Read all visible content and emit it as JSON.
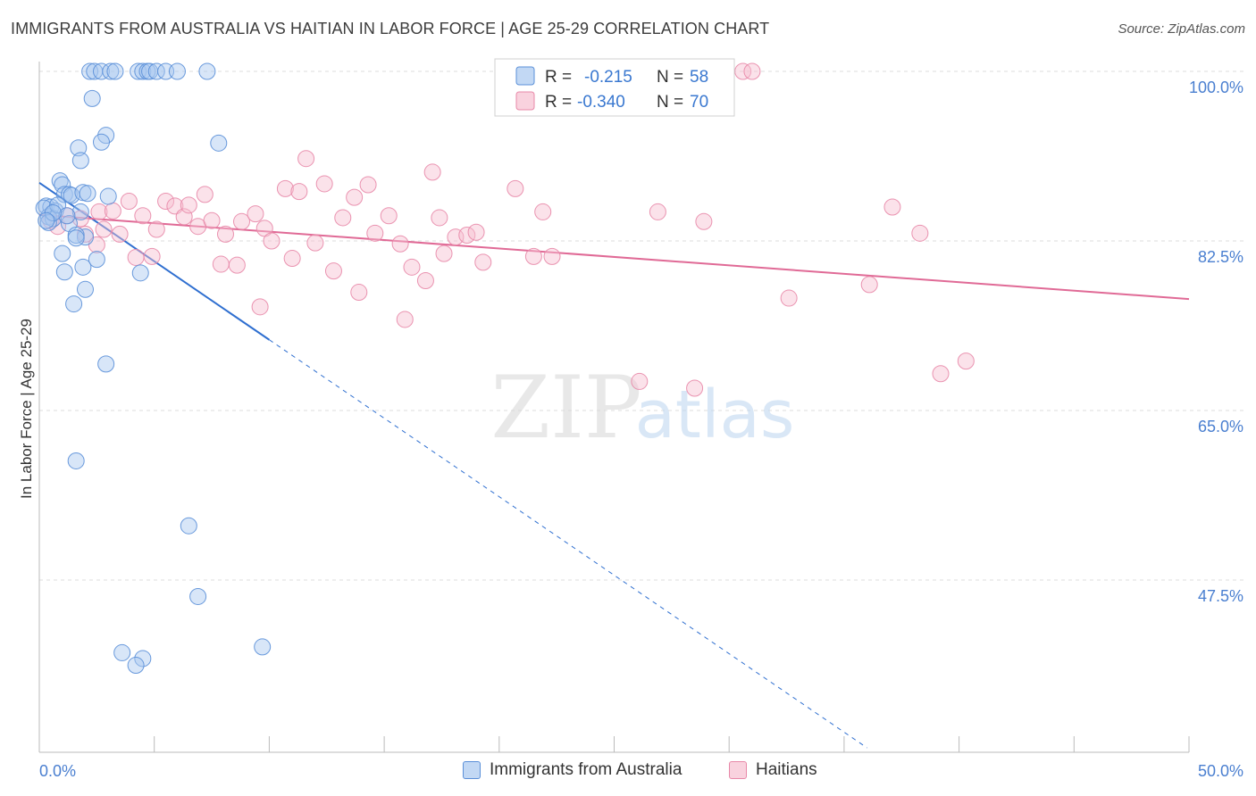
{
  "title": "IMMIGRANTS FROM AUSTRALIA VS HAITIAN IN LABOR FORCE | AGE 25-29 CORRELATION CHART",
  "source": "Source: ZipAtlas.com",
  "watermark": {
    "zip": "ZIP",
    "atlas": "atlas"
  },
  "colors": {
    "blue_fill": "#a8c8f0",
    "blue_stroke": "#5a8fd8",
    "blue_line": "#2f6fd0",
    "pink_fill": "#f6bfd0",
    "pink_stroke": "#e888a8",
    "pink_line": "#e06a96",
    "axis_label": "#4a7fd0",
    "grid": "#dddddd"
  },
  "legend_top": [
    {
      "r_label": "R =",
      "r_value": "-0.215",
      "n_label": "N =",
      "n_value": "58"
    },
    {
      "r_label": "R =",
      "r_value": "-0.340",
      "n_label": "N =",
      "n_value": "70"
    }
  ],
  "chart_data": {
    "type": "scatter",
    "ylabel": "In Labor Force | Age 25-29",
    "xlabel": "",
    "xlim": [
      0,
      50
    ],
    "ylim": [
      30,
      102
    ],
    "x_tick_labels": [
      "0.0%",
      "50.0%"
    ],
    "y_ticks": [
      {
        "value": 100,
        "label": "100.0%"
      },
      {
        "value": 82.5,
        "label": "82.5%"
      },
      {
        "value": 65,
        "label": "65.0%"
      },
      {
        "value": 47.5,
        "label": "47.5%"
      }
    ],
    "grid": "horizontal dashed",
    "legend_position": "bottom",
    "series": [
      {
        "name": "Immigrants from Australia",
        "r": -0.215,
        "n": 58,
        "trend": {
          "x0": 0,
          "y0": 88.5,
          "x1": 10,
          "y1": 72.3,
          "dash_to_x": 36
        },
        "points": [
          [
            2.2,
            100
          ],
          [
            2.4,
            100
          ],
          [
            2.7,
            100
          ],
          [
            3.1,
            100
          ],
          [
            3.3,
            100
          ],
          [
            4.3,
            100
          ],
          [
            4.5,
            100
          ],
          [
            4.7,
            100
          ],
          [
            4.8,
            100
          ],
          [
            5.1,
            100
          ],
          [
            5.5,
            100
          ],
          [
            6.0,
            100
          ],
          [
            7.3,
            100
          ],
          [
            2.3,
            97.2
          ],
          [
            2.9,
            93.4
          ],
          [
            2.7,
            92.7
          ],
          [
            1.7,
            92.1
          ],
          [
            7.8,
            92.6
          ],
          [
            1.8,
            90.8
          ],
          [
            0.9,
            88.7
          ],
          [
            1.0,
            88.3
          ],
          [
            1.1,
            87.3
          ],
          [
            1.3,
            87.3
          ],
          [
            1.4,
            87.2
          ],
          [
            0.3,
            86.1
          ],
          [
            0.5,
            86.0
          ],
          [
            0.7,
            85.6
          ],
          [
            0.4,
            85.0
          ],
          [
            0.6,
            84.8
          ],
          [
            1.3,
            84.3
          ],
          [
            1.8,
            85.5
          ],
          [
            2.0,
            82.9
          ],
          [
            3.0,
            87.1
          ],
          [
            1.9,
            87.5
          ],
          [
            1.6,
            83.1
          ],
          [
            1.0,
            81.2
          ],
          [
            1.1,
            79.3
          ],
          [
            2.5,
            80.6
          ],
          [
            1.9,
            79.8
          ],
          [
            2.0,
            77.5
          ],
          [
            4.4,
            79.2
          ],
          [
            1.5,
            76.0
          ],
          [
            2.9,
            69.8
          ],
          [
            1.6,
            59.8
          ],
          [
            6.5,
            53.1
          ],
          [
            6.9,
            45.8
          ],
          [
            9.7,
            40.6
          ],
          [
            3.6,
            40.0
          ],
          [
            4.5,
            39.4
          ],
          [
            4.2,
            38.7
          ],
          [
            0.2,
            85.9
          ],
          [
            0.8,
            86.2
          ],
          [
            0.4,
            84.4
          ],
          [
            1.2,
            85.1
          ],
          [
            0.6,
            85.4
          ],
          [
            0.3,
            84.6
          ],
          [
            1.6,
            82.8
          ],
          [
            2.1,
            87.4
          ]
        ]
      },
      {
        "name": "Haitians",
        "r": -0.34,
        "n": 70,
        "trend": {
          "x0": 0,
          "y0": 85.2,
          "x1": 50,
          "y1": 76.5
        },
        "points": [
          [
            0.5,
            84.6
          ],
          [
            0.8,
            84.0
          ],
          [
            1.2,
            85.1
          ],
          [
            1.8,
            84.8
          ],
          [
            2.0,
            83.2
          ],
          [
            2.5,
            82.1
          ],
          [
            2.6,
            85.5
          ],
          [
            2.8,
            83.7
          ],
          [
            3.2,
            85.6
          ],
          [
            3.5,
            83.2
          ],
          [
            3.9,
            86.6
          ],
          [
            4.2,
            80.8
          ],
          [
            4.5,
            85.1
          ],
          [
            4.9,
            80.9
          ],
          [
            5.1,
            83.7
          ],
          [
            5.5,
            86.6
          ],
          [
            5.9,
            86.1
          ],
          [
            6.3,
            85.0
          ],
          [
            6.5,
            86.2
          ],
          [
            6.9,
            84.0
          ],
          [
            7.2,
            87.3
          ],
          [
            7.5,
            84.6
          ],
          [
            7.9,
            80.1
          ],
          [
            8.1,
            83.2
          ],
          [
            8.6,
            80.0
          ],
          [
            8.8,
            84.5
          ],
          [
            9.4,
            85.3
          ],
          [
            9.6,
            75.7
          ],
          [
            9.8,
            83.8
          ],
          [
            10.1,
            82.5
          ],
          [
            10.7,
            87.9
          ],
          [
            11.0,
            80.7
          ],
          [
            11.3,
            87.6
          ],
          [
            11.6,
            91.0
          ],
          [
            12.0,
            82.3
          ],
          [
            12.4,
            88.4
          ],
          [
            12.8,
            79.4
          ],
          [
            13.2,
            84.9
          ],
          [
            13.7,
            87.0
          ],
          [
            13.9,
            77.2
          ],
          [
            14.3,
            88.3
          ],
          [
            14.6,
            83.3
          ],
          [
            15.2,
            85.1
          ],
          [
            15.7,
            82.2
          ],
          [
            15.9,
            74.4
          ],
          [
            16.2,
            79.8
          ],
          [
            16.8,
            78.4
          ],
          [
            17.1,
            89.6
          ],
          [
            17.4,
            84.9
          ],
          [
            17.6,
            81.2
          ],
          [
            18.1,
            82.9
          ],
          [
            18.6,
            83.1
          ],
          [
            19.0,
            83.4
          ],
          [
            19.3,
            80.3
          ],
          [
            20.7,
            87.9
          ],
          [
            21.5,
            80.9
          ],
          [
            21.9,
            85.5
          ],
          [
            22.3,
            80.9
          ],
          [
            26.1,
            68.0
          ],
          [
            26.9,
            85.5
          ],
          [
            28.5,
            67.3
          ],
          [
            28.9,
            84.5
          ],
          [
            30.6,
            100
          ],
          [
            31.0,
            100
          ],
          [
            32.6,
            76.6
          ],
          [
            36.1,
            78.0
          ],
          [
            37.1,
            86.0
          ],
          [
            38.3,
            83.3
          ],
          [
            39.2,
            68.8
          ],
          [
            40.3,
            70.1
          ]
        ]
      }
    ]
  }
}
